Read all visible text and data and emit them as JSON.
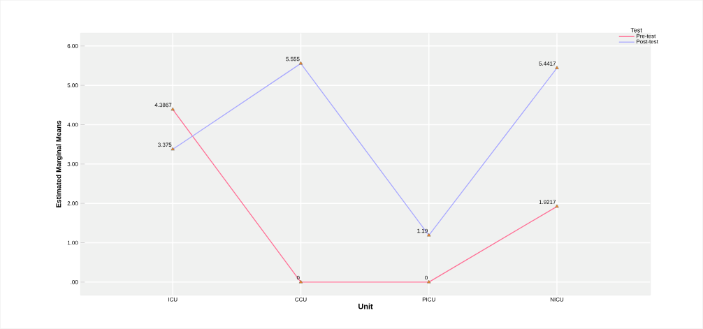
{
  "chart_data": {
    "type": "line",
    "xlabel": "Unit",
    "ylabel": "Estimated Marginal Means",
    "legend_title": "Test",
    "categories": [
      "ICU",
      "CCU",
      "PICU",
      "NICU"
    ],
    "series": [
      {
        "name": "Pre-test",
        "color": "#ff7096",
        "values": [
          4.3867,
          0,
          0,
          1.9217
        ]
      },
      {
        "name": "Post-test",
        "color": "#a8a8ff",
        "values": [
          3.375,
          5.555,
          1.19,
          5.4417
        ]
      }
    ],
    "ylim": [
      -0.33,
      6.33
    ],
    "yticks": [
      {
        "value": 0,
        "label": ".00"
      },
      {
        "value": 1,
        "label": "1.00"
      },
      {
        "value": 2,
        "label": "2.00"
      },
      {
        "value": 3,
        "label": "3.00"
      },
      {
        "value": 4,
        "label": "4.00"
      },
      {
        "value": 5,
        "label": "5.00"
      },
      {
        "value": 6,
        "label": "6.00"
      }
    ],
    "grid": true,
    "legend": "top right",
    "marker": "triangle",
    "line_style": "solid",
    "data_labels": true
  }
}
